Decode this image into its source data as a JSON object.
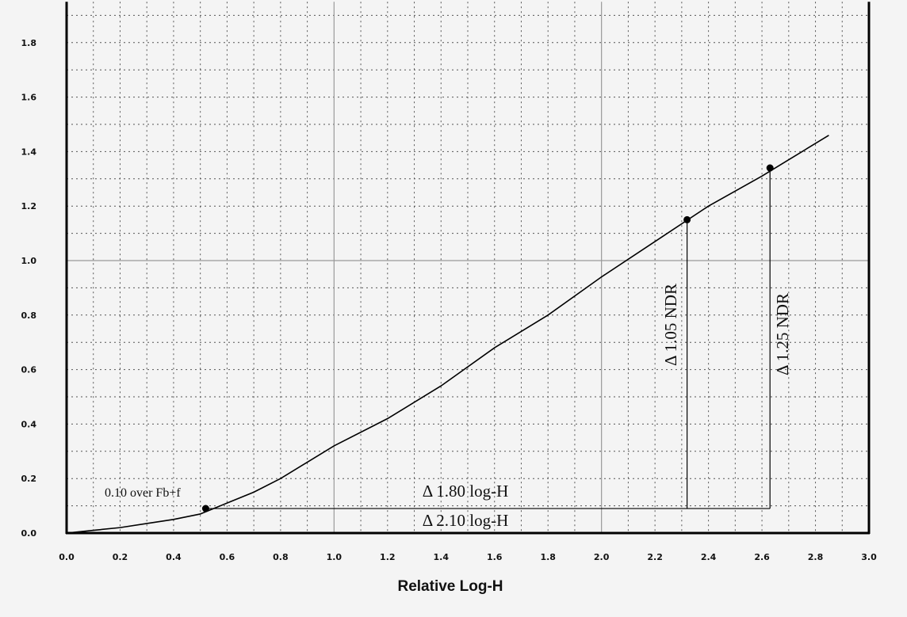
{
  "chart_data": {
    "type": "line",
    "title": "",
    "xlabel": "Relative Log-H",
    "ylabel": "",
    "xlim": [
      0.0,
      3.0
    ],
    "ylim": [
      0.0,
      1.95
    ],
    "x_ticks": [
      "0.0",
      "0.2",
      "0.4",
      "0.6",
      "0.8",
      "1.0",
      "1.2",
      "1.4",
      "1.6",
      "1.8",
      "2.0",
      "2.2",
      "2.4",
      "2.6",
      "2.8",
      "3.0"
    ],
    "y_ticks": [
      "0.0",
      "0.2",
      "0.4",
      "0.6",
      "0.8",
      "1.0",
      "1.2",
      "1.4",
      "1.6",
      "1.8"
    ],
    "grid": true,
    "series": [
      {
        "name": "",
        "x": [
          0.0,
          0.1,
          0.2,
          0.3,
          0.4,
          0.5,
          0.6,
          0.7,
          0.8,
          0.9,
          1.0,
          1.2,
          1.4,
          1.6,
          1.8,
          2.0,
          2.2,
          2.4,
          2.6,
          2.7,
          2.8,
          2.85
        ],
        "y": [
          0.0,
          0.01,
          0.02,
          0.035,
          0.05,
          0.07,
          0.11,
          0.15,
          0.2,
          0.26,
          0.32,
          0.42,
          0.54,
          0.68,
          0.8,
          0.94,
          1.07,
          1.2,
          1.31,
          1.37,
          1.43,
          1.46
        ]
      }
    ],
    "marked_points": [
      {
        "x": 0.52,
        "y": 0.09
      },
      {
        "x": 2.32,
        "y": 1.15
      },
      {
        "x": 2.63,
        "y": 1.34
      }
    ],
    "annotations": {
      "point_label": "0.10 over Fb+f",
      "delta_log_short": "Δ 1.80 log-H",
      "delta_log_long": "Δ 2.10 log-H",
      "ndr_short": "Δ 1.05 NDR",
      "ndr_long": "Δ 1.25 NDR"
    }
  }
}
